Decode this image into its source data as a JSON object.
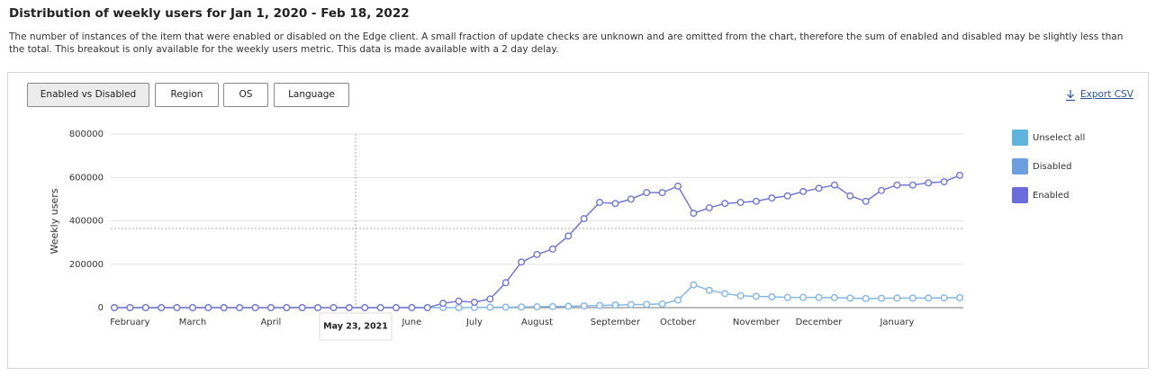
{
  "header": {
    "title": "Distribution of weekly users for Jan 1, 2020 - Feb 18, 2022",
    "description": "The number of instances of the item that were enabled or disabled on the Edge client. A small fraction of update checks are unknown and are omitted from the chart, therefore the sum of enabled and disabled may be slightly less than the total. This breakout is only available for the weekly users metric. This data is made available with a 2 day delay."
  },
  "tabs": [
    "Enabled vs Disabled",
    "Region",
    "OS",
    "Language"
  ],
  "export": "Export CSV",
  "chart_data": {
    "type": "line",
    "ylabel": "Weekly users",
    "categories": [
      null,
      "February",
      null,
      null,
      null,
      "March",
      null,
      null,
      null,
      null,
      "April",
      null,
      null,
      null,
      null,
      null,
      null,
      null,
      null,
      "June",
      null,
      null,
      null,
      "July",
      null,
      null,
      null,
      "August",
      null,
      null,
      null,
      null,
      "September",
      null,
      null,
      null,
      "October",
      null,
      null,
      null,
      null,
      "November",
      null,
      null,
      null,
      "December",
      null,
      null,
      null,
      null,
      "January",
      null,
      null,
      null,
      null
    ],
    "ylim": [
      0,
      800000
    ],
    "yticks": [
      0,
      200000,
      400000,
      600000,
      800000
    ],
    "grid": true,
    "legend_extra": {
      "name": "Unselect all",
      "color": "#5fb4dd"
    },
    "tooltip": "May 23, 2021",
    "series": [
      {
        "name": "Disabled",
        "color": "#6d9fe0",
        "line_color": "#86b7e4",
        "values": [
          0,
          0,
          0,
          0,
          0,
          0,
          0,
          0,
          0,
          0,
          0,
          0,
          0,
          0,
          0,
          0,
          0,
          0,
          0,
          0,
          0,
          0,
          0,
          0,
          2000,
          2000,
          3000,
          4000,
          5000,
          6000,
          8000,
          10000,
          12000,
          14000,
          15000,
          17000,
          35000,
          105000,
          80000,
          65000,
          55000,
          52000,
          50000,
          47000,
          47000,
          47000,
          46000,
          44000,
          42000,
          43000,
          44000,
          44000,
          44000,
          45000,
          46000
        ]
      },
      {
        "name": "Enabled",
        "color": "#6a6cdc",
        "line_color": "#7478d6",
        "values": [
          0,
          0,
          0,
          0,
          0,
          0,
          0,
          0,
          0,
          0,
          0,
          0,
          0,
          0,
          0,
          0,
          0,
          0,
          0,
          0,
          0,
          20000,
          30000,
          25000,
          40000,
          115000,
          210000,
          245000,
          270000,
          330000,
          410000,
          485000,
          480000,
          500000,
          530000,
          530000,
          560000,
          435000,
          460000,
          480000,
          485000,
          490000,
          505000,
          515000,
          535000,
          550000,
          565000,
          515000,
          490000,
          540000,
          565000,
          565000,
          575000,
          580000,
          610000
        ]
      }
    ]
  }
}
